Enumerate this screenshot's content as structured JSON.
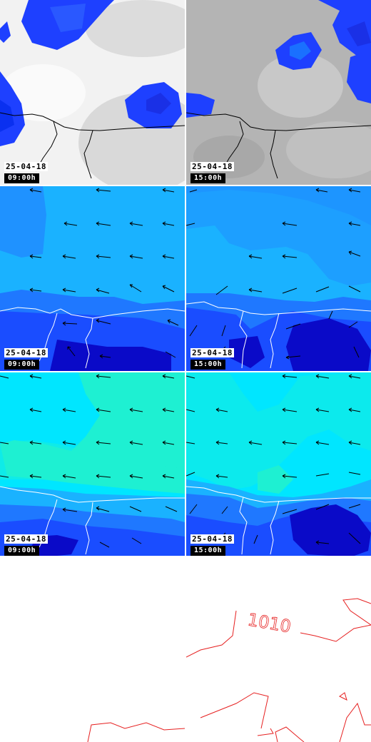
{
  "panels": [
    {
      "row": "cloud",
      "date": "25-04-18",
      "time": "09:00h"
    },
    {
      "row": "cloud",
      "date": "25-04-18",
      "time": "15:00h"
    },
    {
      "row": "wind-low",
      "date": "25-04-18",
      "time": "09:00h"
    },
    {
      "row": "wind-low",
      "date": "25-04-18",
      "time": "15:00h"
    },
    {
      "row": "wind-high",
      "date": "25-04-18",
      "time": "09:00h"
    },
    {
      "row": "wind-high",
      "date": "25-04-18",
      "time": "15:00h"
    }
  ],
  "pressure_chart": {
    "isobar_label": "1010"
  },
  "colors": {
    "cloud_white": "#ffffff",
    "cloud_grey": "#b4b4b4",
    "precip_blue": "#1e40ff",
    "precip_dark": "#0a1ee6",
    "wind_light": "#1ab2ff",
    "wind_mid": "#1f78ff",
    "wind_blue": "#1a4dff",
    "wind_dark": "#0a0ac8",
    "wind_cyan": "#00e6ff",
    "wind_aqua": "#1ef0d2",
    "isobar": "#e62020"
  }
}
